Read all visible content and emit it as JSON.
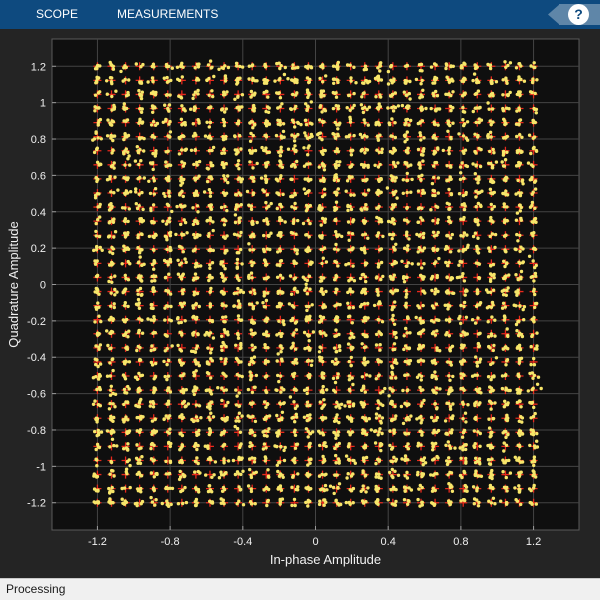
{
  "toolstrip": {
    "tabs": [
      {
        "label": "SCOPE"
      },
      {
        "label": "MEASUREMENTS"
      }
    ],
    "help_label": "?"
  },
  "colors": {
    "toolstrip": "#0e4a7f",
    "figure_background": "#242424",
    "axes_background": "#0f0f0f",
    "grid": "#444444",
    "received_points": "#f7e66a",
    "reference_points": "#e8281c"
  },
  "status": {
    "text": "Processing"
  },
  "chart_data": {
    "type": "scatter",
    "title": "",
    "xlabel": "In-phase Amplitude",
    "ylabel": "Quadrature Amplitude",
    "xlim": [
      -1.45,
      1.45
    ],
    "ylim": [
      -1.35,
      1.35
    ],
    "x_ticks": [
      -1.2,
      -0.8,
      -0.4,
      0,
      0.4,
      0.8,
      1.2
    ],
    "y_ticks": [
      -1.2,
      -1,
      -0.8,
      -0.6,
      -0.4,
      -0.2,
      0,
      0.2,
      0.4,
      0.6,
      0.8,
      1,
      1.2
    ],
    "grid": true,
    "constellation": {
      "levels_per_axis": 32,
      "min": -1.2,
      "max": 1.2,
      "marker": "+"
    },
    "received_noise_std": 0.011,
    "series": [
      {
        "role": "received",
        "marker": "dot",
        "color": "#f7e66a"
      },
      {
        "role": "reference",
        "marker": "plus",
        "color": "#e8281c"
      }
    ]
  }
}
